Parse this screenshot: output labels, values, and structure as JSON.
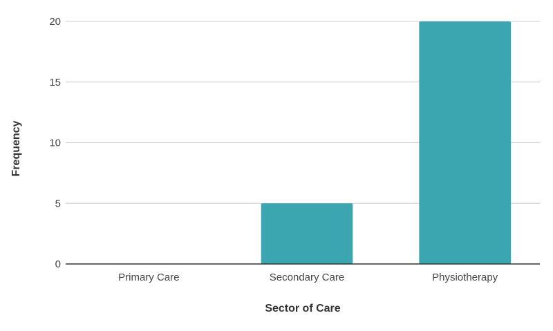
{
  "chart_data": {
    "type": "bar",
    "title": "",
    "xlabel": "Sector of Care",
    "ylabel": "Frequency",
    "categories": [
      "Primary Care",
      "Secondary Care",
      "Physiotherapy"
    ],
    "series": [
      {
        "values": [
          0,
          5,
          20
        ],
        "color": "#3ba6b0"
      }
    ],
    "ylim": [
      0,
      20
    ],
    "yticks": [
      "0",
      "5",
      "10",
      "15",
      "20"
    ],
    "grid": true,
    "legend": "none"
  }
}
